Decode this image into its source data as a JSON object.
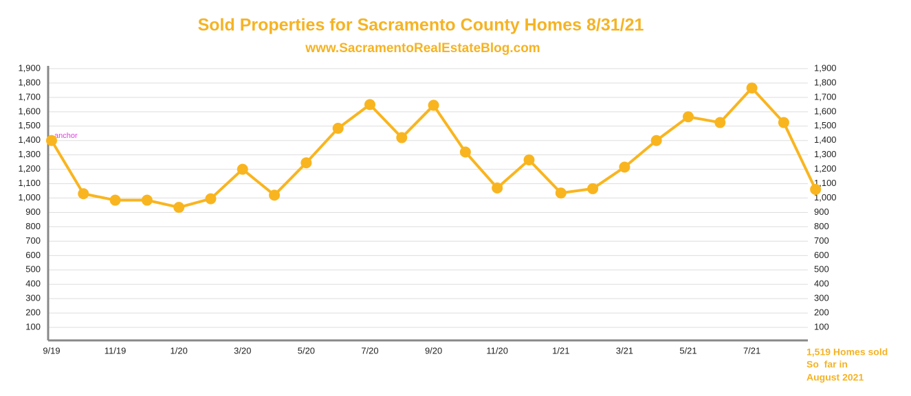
{
  "chart_data": {
    "type": "line",
    "title": "Sold Properties for Sacramento County Homes 8/31/21",
    "subtitle": "www.SacramentoRealEstateBlog.com",
    "categories": [
      "9/19",
      null,
      "11/19",
      null,
      "1/20",
      null,
      "3/20",
      null,
      "5/20",
      null,
      "7/20",
      null,
      "9/20",
      null,
      "11/20",
      null,
      "1/21",
      null,
      "3/21",
      null,
      "5/21",
      null,
      "7/21",
      null,
      null
    ],
    "series": [
      {
        "name": "Sold Properties",
        "color": "#f9b51f",
        "values": [
          1400,
          1030,
          985,
          985,
          935,
          995,
          1200,
          1020,
          1245,
          1485,
          1650,
          1420,
          1645,
          1320,
          1070,
          1265,
          1035,
          1065,
          1215,
          1400,
          1565,
          1525,
          1765,
          1525,
          1060
        ]
      }
    ],
    "ylim": [
      0,
      1900
    ],
    "yticks": [
      100,
      200,
      300,
      400,
      500,
      600,
      700,
      800,
      900,
      {
        "value": 1000,
        "label": "1,000"
      },
      {
        "value": 1100,
        "label": "1,100"
      },
      {
        "value": 1200,
        "label": "1,200"
      },
      {
        "value": 1300,
        "label": "1,300"
      },
      {
        "value": 1400,
        "label": "1,400"
      },
      {
        "value": 1500,
        "label": "1,500"
      },
      {
        "value": 1600,
        "label": "1,600"
      },
      {
        "value": 1700,
        "label": "1,700"
      },
      {
        "value": 1800,
        "label": "1,800"
      },
      {
        "value": 1900,
        "label": "1,900"
      }
    ],
    "y2lim": [
      0,
      1900
    ],
    "y2ticks": [
      100,
      200,
      300,
      400,
      500,
      600,
      700,
      800,
      900,
      {
        "value": 1000,
        "label": "1,000"
      },
      {
        "value": 1100,
        "label": "1,100"
      },
      {
        "value": 1200,
        "label": "1,200"
      },
      {
        "value": 1300,
        "label": "1,300"
      },
      {
        "value": 1400,
        "label": "1,400"
      },
      {
        "value": 1500,
        "label": "1,500"
      },
      {
        "value": 1600,
        "label": "1,600"
      },
      {
        "value": 1700,
        "label": "1,700"
      },
      {
        "value": 1800,
        "label": "1,800"
      },
      {
        "value": 1900,
        "label": "1,900"
      }
    ],
    "grid": true,
    "annotations": [
      "anchor",
      "1,519 Homes sold",
      "So  far in",
      "August 2021"
    ]
  }
}
